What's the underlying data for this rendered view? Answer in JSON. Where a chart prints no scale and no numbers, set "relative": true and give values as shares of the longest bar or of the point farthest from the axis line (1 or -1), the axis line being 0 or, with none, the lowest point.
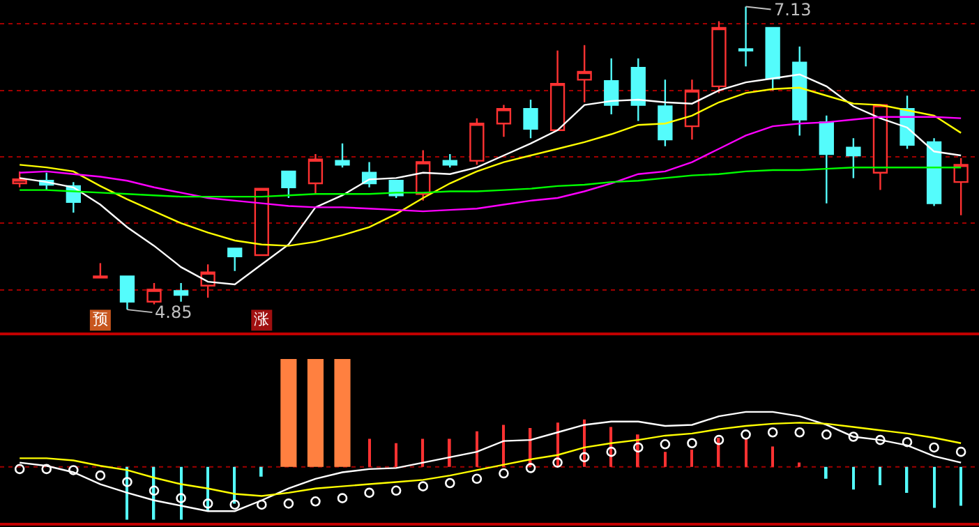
{
  "chart_data": [
    {
      "type": "candlestick",
      "categories": [
        null,
        null,
        null,
        null,
        null,
        null,
        null,
        null,
        null,
        null,
        null,
        null,
        null,
        null,
        null,
        null,
        null,
        null,
        null,
        null,
        null,
        null,
        null,
        null,
        null,
        null,
        null,
        null,
        null,
        null,
        null,
        null,
        null,
        null,
        null,
        null
      ],
      "ohlc": [
        [
          5.8,
          5.89,
          5.77,
          5.83
        ],
        [
          5.82,
          5.88,
          5.75,
          5.79
        ],
        [
          5.78,
          5.81,
          5.58,
          5.66
        ],
        [
          5.09,
          5.2,
          5.09,
          5.1
        ],
        [
          5.1,
          5.1,
          4.85,
          4.91
        ],
        [
          4.91,
          5.05,
          4.89,
          5.0
        ],
        [
          4.99,
          5.05,
          4.91,
          4.96
        ],
        [
          5.03,
          5.19,
          4.94,
          5.13
        ],
        [
          5.31,
          5.31,
          5.14,
          5.25
        ],
        [
          5.26,
          5.76,
          5.26,
          5.76
        ],
        [
          5.89,
          5.89,
          5.69,
          5.77
        ],
        [
          5.8,
          6.02,
          5.72,
          5.98
        ],
        [
          5.97,
          6.1,
          5.92,
          5.94
        ],
        [
          5.88,
          5.96,
          5.77,
          5.8
        ],
        [
          5.82,
          5.82,
          5.69,
          5.71
        ],
        [
          5.72,
          6.05,
          5.67,
          5.96
        ],
        [
          5.97,
          6.02,
          5.92,
          5.94
        ],
        [
          5.97,
          6.29,
          5.94,
          6.25
        ],
        [
          6.25,
          6.39,
          6.15,
          6.36
        ],
        [
          6.36,
          6.43,
          6.14,
          6.21
        ],
        [
          6.2,
          6.8,
          6.2,
          6.55
        ],
        [
          6.58,
          6.84,
          6.41,
          6.64
        ],
        [
          6.57,
          6.74,
          6.32,
          6.39
        ],
        [
          6.67,
          6.74,
          6.27,
          6.39
        ],
        [
          6.38,
          6.58,
          6.08,
          6.13
        ],
        [
          6.23,
          6.58,
          6.13,
          6.5
        ],
        [
          6.53,
          7.02,
          6.48,
          6.97
        ],
        [
          6.81,
          7.13,
          6.68,
          6.8
        ],
        [
          6.97,
          6.97,
          6.5,
          6.59
        ],
        [
          6.71,
          6.83,
          6.16,
          6.28
        ],
        [
          6.26,
          6.31,
          5.65,
          6.02
        ],
        [
          6.07,
          6.14,
          5.84,
          6.01
        ],
        [
          5.88,
          6.39,
          5.75,
          6.39
        ],
        [
          6.36,
          6.46,
          6.06,
          6.09
        ],
        [
          6.11,
          6.14,
          5.63,
          5.65
        ],
        [
          5.81,
          5.99,
          5.56,
          5.94
        ]
      ],
      "colors": [
        "#ff3232",
        "#54fcfc",
        "#54fcfc",
        "#ff3232",
        "#54fcfc",
        "#ff3232",
        "#54fcfc",
        "#ff3232",
        "#54fcfc",
        "#ff3232",
        "#54fcfc",
        "#ff3232",
        "#54fcfc",
        "#54fcfc",
        "#54fcfc",
        "#ff3232",
        "#54fcfc",
        "#ff3232",
        "#ff3232",
        "#54fcfc",
        "#ff3232",
        "#ff3232",
        "#54fcfc",
        "#54fcfc",
        "#54fcfc",
        "#ff3232",
        "#ff3232",
        "#54fcfc",
        "#54fcfc",
        "#54fcfc",
        "#54fcfc",
        "#54fcfc",
        "#ff3232",
        "#54fcfc",
        "#54fcfc",
        "#ff3232"
      ],
      "series": [
        {
          "type": "line",
          "color": "#ffffff",
          "values": [
            5.84,
            5.81,
            5.77,
            5.64,
            5.47,
            5.33,
            5.17,
            5.06,
            5.04,
            5.19,
            5.34,
            5.62,
            5.71,
            5.83,
            5.84,
            5.88,
            5.87,
            5.92,
            6.01,
            6.1,
            6.2,
            6.39,
            6.42,
            6.43,
            6.41,
            6.4,
            6.5,
            6.56,
            6.59,
            6.62,
            6.53,
            6.38,
            6.29,
            6.22,
            6.04,
            6.01
          ]
        },
        {
          "type": "line",
          "color": "#ffff00",
          "values": [
            5.94,
            5.92,
            5.89,
            5.78,
            5.68,
            5.59,
            5.5,
            5.43,
            5.37,
            5.34,
            5.33,
            5.36,
            5.41,
            5.47,
            5.57,
            5.69,
            5.8,
            5.89,
            5.96,
            6.01,
            6.06,
            6.11,
            6.17,
            6.24,
            6.25,
            6.31,
            6.41,
            6.48,
            6.51,
            6.52,
            6.46,
            6.4,
            6.39,
            6.35,
            6.31,
            6.18
          ]
        },
        {
          "type": "line",
          "color": "#ff00ff",
          "values": [
            5.88,
            5.89,
            5.87,
            5.85,
            5.82,
            5.77,
            5.73,
            5.69,
            5.67,
            5.65,
            5.63,
            5.62,
            5.62,
            5.61,
            5.6,
            5.59,
            5.6,
            5.61,
            5.64,
            5.67,
            5.69,
            5.74,
            5.8,
            5.87,
            5.89,
            5.96,
            6.06,
            6.16,
            6.23,
            6.25,
            6.26,
            6.28,
            6.3,
            6.3,
            6.3,
            6.29
          ]
        },
        {
          "type": "line",
          "color": "#00ff00",
          "values": [
            5.75,
            5.75,
            5.74,
            5.73,
            5.72,
            5.71,
            5.7,
            5.7,
            5.7,
            5.7,
            5.71,
            5.72,
            5.72,
            5.72,
            5.73,
            5.73,
            5.74,
            5.74,
            5.75,
            5.76,
            5.78,
            5.79,
            5.81,
            5.82,
            5.84,
            5.86,
            5.87,
            5.89,
            5.9,
            5.9,
            5.91,
            5.92,
            5.92,
            5.92,
            5.92,
            5.92
          ]
        },
        {
          "type": "scatter",
          "marker": "square",
          "colors": [
            null,
            null,
            null,
            "#c8561e",
            null,
            null,
            null,
            null,
            null,
            "#a01010",
            null,
            null,
            null,
            null,
            null,
            null,
            null,
            null,
            null,
            null,
            null,
            null,
            null,
            null,
            null,
            null,
            null,
            null,
            null,
            null,
            null,
            null,
            null,
            null,
            null,
            null
          ],
          "values": [
            null,
            null,
            null,
            4.77,
            null,
            null,
            null,
            null,
            null,
            4.77,
            null,
            null,
            null,
            null,
            null,
            null,
            null,
            null,
            null,
            null,
            null,
            null,
            null,
            null,
            null,
            null,
            null,
            null,
            null,
            null,
            null,
            null,
            null,
            null,
            null,
            null
          ],
          "value_labels": [
            null,
            null,
            null,
            "预",
            null,
            null,
            null,
            null,
            null,
            "涨",
            null,
            null,
            null,
            null,
            null,
            null,
            null,
            null,
            null,
            null,
            null,
            null,
            null,
            null,
            null,
            null,
            null,
            null,
            null,
            null,
            null,
            null,
            null,
            null,
            null,
            null
          ]
        }
      ],
      "annotations": [
        "4.85",
        "7.13"
      ],
      "ylim": [
        4.68,
        7.18
      ],
      "yticks": [
        {
          "value": 5,
          "label": null
        },
        {
          "value": 5.5,
          "label": null
        },
        {
          "value": 6,
          "label": null
        },
        {
          "value": 6.5,
          "label": null
        },
        {
          "value": 7,
          "label": null
        }
      ],
      "grid": "y",
      "legend": false
    },
    {
      "type": "bar",
      "relative": true,
      "categories": [
        null,
        null,
        null,
        null,
        null,
        null,
        null,
        null,
        null,
        null,
        null,
        null,
        null,
        null,
        null,
        null,
        null,
        null,
        null,
        null,
        null,
        null,
        null,
        null,
        null,
        null,
        null,
        null,
        null,
        null,
        null,
        null,
        null,
        null,
        null,
        null
      ],
      "series": [
        {
          "type": "bar",
          "colors": [
            null,
            null,
            null,
            null,
            "#54fcfc",
            "#54fcfc",
            "#54fcfc",
            "#54fcfc",
            "#54fcfc",
            "#54fcfc",
            "#ff8040",
            "#ff8040",
            "#ff8040",
            "#ff3232",
            "#ff3232",
            "#ff3232",
            "#ff3232",
            "#ff3232",
            "#ff3232",
            "#ff3232",
            "#ff3232",
            "#ff3232",
            "#ff3232",
            "#ff3232",
            "#ff3232",
            "#ff3232",
            "#ff3232",
            "#ff3232",
            "#ff3232",
            "#ff3232",
            "#54fcfc",
            "#54fcfc",
            "#54fcfc",
            "#54fcfc",
            "#54fcfc",
            "#54fcfc"
          ],
          "values": [
            null,
            null,
            null,
            null,
            -0.49,
            -0.49,
            -0.49,
            -0.41,
            -0.34,
            -0.09,
            1,
            1,
            1,
            0.26,
            0.22,
            0.26,
            0.26,
            0.33,
            0.39,
            0.36,
            0.41,
            0.44,
            0.37,
            0.3,
            0.14,
            0.16,
            0.27,
            0.26,
            0.19,
            0.04,
            -0.11,
            -0.21,
            -0.17,
            -0.24,
            -0.38,
            -0.36
          ]
        },
        {
          "type": "line",
          "color": "#ffffff",
          "values": [
            0.04,
            0.01,
            -0.05,
            -0.16,
            -0.24,
            -0.31,
            -0.36,
            -0.41,
            -0.41,
            -0.31,
            -0.2,
            -0.11,
            -0.05,
            -0.02,
            -0.01,
            0.04,
            0.09,
            0.14,
            0.24,
            0.25,
            0.32,
            0.39,
            0.42,
            0.42,
            0.38,
            0.39,
            0.47,
            0.51,
            0.51,
            0.47,
            0.39,
            0.28,
            0.25,
            0.2,
            0.1,
            0.04
          ]
        },
        {
          "type": "line",
          "color": "#ffff00",
          "values": [
            0.08,
            0.08,
            0.06,
            0.01,
            -0.03,
            -0.1,
            -0.16,
            -0.2,
            -0.25,
            -0.27,
            -0.24,
            -0.2,
            -0.18,
            -0.16,
            -0.14,
            -0.12,
            -0.08,
            -0.03,
            0.02,
            0.07,
            0.11,
            0.18,
            0.22,
            0.25,
            0.29,
            0.31,
            0.35,
            0.38,
            0.4,
            0.41,
            0.4,
            0.37,
            0.34,
            0.31,
            0.27,
            0.22
          ]
        },
        {
          "type": "scatter",
          "marker": "circle",
          "color": "#ffffff",
          "values": [
            -0.02,
            -0.02,
            -0.03,
            -0.08,
            -0.14,
            -0.22,
            -0.29,
            -0.34,
            -0.35,
            -0.35,
            -0.34,
            -0.32,
            -0.29,
            -0.24,
            -0.22,
            -0.18,
            -0.15,
            -0.11,
            -0.06,
            -0.01,
            0.04,
            0.09,
            0.14,
            0.18,
            0.21,
            0.22,
            0.25,
            0.3,
            0.32,
            0.32,
            0.3,
            0.28,
            0.25,
            0.23,
            0.18,
            0.14
          ]
        }
      ],
      "ref_lines": [
        {
          "axis": "y",
          "value": 0,
          "color": "#a00000",
          "line_style": "dotted"
        }
      ],
      "legend": false
    }
  ]
}
